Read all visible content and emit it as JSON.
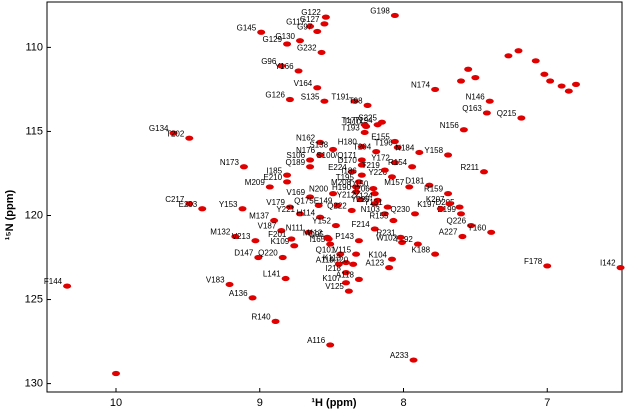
{
  "chart_data": {
    "type": "scatter",
    "xlabel": "¹H (ppm)",
    "ylabel": "¹⁵N (ppm)",
    "color": "#e00000",
    "xlim": [
      10.48,
      6.48
    ],
    "ylim": [
      130.5,
      107.3
    ],
    "xticks": [
      10,
      9,
      8,
      7
    ],
    "yticks": [
      110,
      115,
      120,
      125,
      130
    ],
    "x": [
      8.99,
      8.54,
      8.06,
      8.65,
      8.55,
      8.6,
      8.72,
      8.81,
      8.57,
      8.85,
      8.73,
      8.6,
      8.79,
      8.55,
      8.34,
      8.25,
      7.78,
      7.4,
      7.42,
      7.18,
      9.6,
      9.49,
      8.27,
      8.18,
      8.15,
      7.58,
      8.26,
      8.27,
      8.06,
      8.58,
      8.49,
      8.29,
      8.19,
      8.04,
      7.89,
      7.69,
      8.58,
      8.65,
      8.29,
      8.29,
      8.06,
      7.94,
      7.44,
      9.11,
      8.65,
      8.36,
      8.29,
      8.08,
      8.13,
      8.81,
      8.81,
      8.31,
      7.96,
      8.33,
      8.21,
      7.82,
      7.69,
      8.93,
      8.49,
      8.33,
      8.2,
      8.65,
      8.3,
      8.18,
      7.61,
      7.68,
      8.2,
      8.11,
      7.92,
      7.6,
      7.74,
      9.49,
      9.4,
      9.12,
      8.79,
      8.59,
      8.46,
      8.36,
      8.72,
      8.58,
      8.13,
      9.17,
      9.03,
      8.9,
      8.85,
      8.66,
      8.53,
      8.2,
      8.07,
      8.01,
      7.9,
      7.78,
      7.53,
      7.59,
      7.39,
      8.31,
      8.02,
      8.47,
      8.51,
      8.52,
      8.76,
      8.78,
      9.01,
      8.84,
      8.44,
      8.33,
      8.4,
      8.08,
      8.35,
      8.45,
      8.1,
      8.4,
      7.0,
      6.49,
      8.82,
      8.31,
      8.4,
      8.38,
      10.34,
      9.21,
      9.05,
      8.89,
      8.51,
      7.93,
      10.0,
      7.08,
      7.02,
      6.98,
      6.9,
      6.85,
      6.8,
      7.55,
      7.5,
      7.6,
      7.27,
      7.2
    ],
    "values": [
      109.1,
      108.2,
      108.1,
      108.75,
      108.6,
      109.05,
      109.6,
      109.8,
      110.3,
      111.1,
      111.4,
      112.4,
      113.1,
      113.2,
      113.2,
      113.45,
      112.5,
      113.2,
      113.9,
      114.2,
      115.1,
      115.4,
      114.6,
      114.6,
      114.45,
      114.9,
      114.7,
      115.06,
      115.6,
      115.65,
      116.07,
      115.9,
      116.2,
      115.95,
      116.25,
      116.4,
      116.4,
      116.7,
      116.7,
      117.0,
      116.85,
      117.1,
      117.4,
      117.1,
      117.1,
      117.4,
      117.6,
      117.7,
      117.3,
      117.6,
      118.0,
      118.0,
      118.3,
      118.3,
      118.4,
      118.2,
      118.7,
      118.3,
      118.7,
      118.6,
      118.7,
      118.9,
      119.05,
      119.1,
      119.5,
      119.3,
      119.3,
      119.5,
      119.9,
      119.9,
      119.6,
      119.3,
      119.6,
      119.6,
      119.5,
      119.4,
      119.4,
      119.7,
      119.9,
      120.1,
      119.9,
      121.25,
      121.5,
      120.3,
      120.9,
      121.0,
      121.3,
      120.8,
      120.3,
      121.6,
      121.7,
      122.3,
      120.6,
      121.25,
      121.0,
      121.5,
      121.3,
      120.6,
      121.7,
      121.4,
      121.8,
      121.4,
      122.5,
      122.5,
      122.3,
      122.3,
      122.8,
      122.6,
      122.9,
      122.9,
      123.1,
      123.4,
      123.0,
      123.1,
      123.75,
      123.8,
      124.0,
      124.5,
      124.2,
      124.1,
      124.9,
      126.3,
      127.7,
      128.6,
      129.4,
      110.8,
      111.6,
      112.0,
      112.3,
      112.6,
      112.2,
      111.3,
      111.8,
      112.0,
      110.5,
      110.2
    ],
    "point_labels": [
      "G145",
      "G122",
      "G198",
      "G117",
      "G127",
      "G97",
      "G130",
      "G129",
      "G232",
      "G96",
      "Y166",
      "V164",
      "G126",
      "S135",
      "T191",
      "T98",
      "N174",
      "N146",
      "Q163",
      "Q215",
      "G134",
      "T202",
      "T177",
      "T194",
      "S225",
      "N156",
      "T110",
      "T193",
      "E155",
      "N162",
      "S138",
      "H180",
      "T204",
      "T196",
      "N184",
      "Y158",
      "N176",
      "S106",
      "S100/Q171",
      "D170",
      "Y172",
      "R154",
      "R211",
      "N173",
      "Q189",
      "E224",
      "I186",
      "Y226",
      "T219",
      "I185",
      "E210",
      "T195",
      "M157",
      "M208",
      "D150",
      "D181",
      "R159",
      "M209",
      "N200",
      "H190",
      "I206",
      "V169",
      "Y212",
      "Y124",
      "D205",
      "K207",
      "Y229",
      "Y131",
      "Q230",
      "E199",
      "K197",
      "C217",
      "E203",
      "Y153",
      "V179",
      "Q175",
      "E149",
      "Q222",
      "Y221",
      "H114",
      "N103",
      "M132",
      "V213",
      "M137",
      "V187",
      "N111",
      "M112",
      "F214",
      "R155",
      "W102",
      "Y192",
      "K188",
      "Q226",
      "A227",
      "Y160",
      "P143",
      "R231",
      "Y152",
      "I165",
      "Q95",
      "K109",
      "F201",
      "D147",
      "Q220",
      "Q101",
      "V115",
      "K113",
      "K104",
      "A120",
      "A119",
      "A123",
      "I218",
      "F178",
      "I142",
      "L141",
      "A118",
      "K107",
      "V125",
      "F144",
      "V183",
      "A136",
      "R140",
      "A116",
      "A233",
      null,
      null,
      null,
      null,
      null,
      null,
      null,
      null,
      null,
      null,
      null,
      null
    ]
  }
}
